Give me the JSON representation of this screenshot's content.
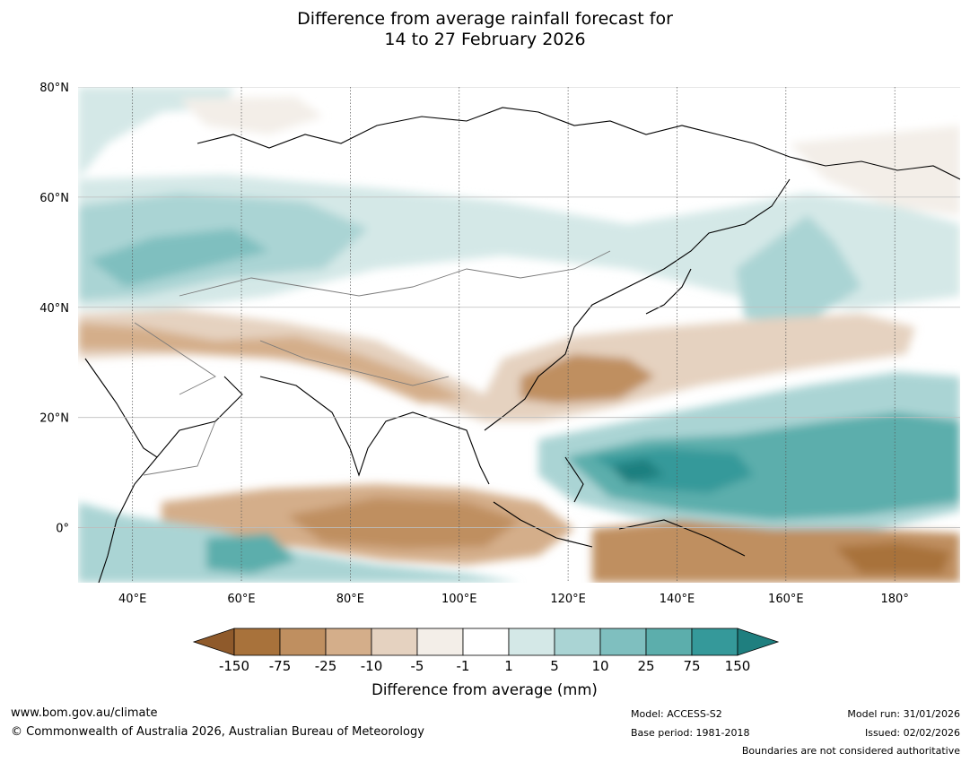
{
  "title": {
    "line1": "Difference from average rainfall forecast for",
    "line2": "14 to 27 February 2026"
  },
  "map": {
    "lat_labels": [
      "80°N",
      "60°N",
      "40°N",
      "20°N",
      "0°"
    ],
    "lon_labels": [
      "40°E",
      "60°E",
      "80°E",
      "100°E",
      "120°E",
      "140°E",
      "160°E",
      "180°"
    ],
    "lat_values": [
      80,
      60,
      40,
      20,
      0
    ],
    "lon_values": [
      40,
      60,
      80,
      100,
      120,
      140,
      160,
      180
    ],
    "extent": {
      "lon_min": 30,
      "lon_max": 192,
      "lat_min": -10,
      "lat_max": 80
    }
  },
  "colorbar": {
    "title": "Difference from average (mm)",
    "labels": [
      "-150",
      "-75",
      "-25",
      "-10",
      "-5",
      "-1",
      "1",
      "5",
      "10",
      "25",
      "75",
      "150"
    ],
    "colors": [
      "#a8723b",
      "#bf8f60",
      "#d4ae8a",
      "#e5d2c0",
      "#f3eee8",
      "#ffffff",
      "#d4e8e7",
      "#aad4d4",
      "#7fbfbf",
      "#5caeac",
      "#35999a"
    ],
    "under_color": "#8f5a2b",
    "over_color": "#1f7f7f"
  },
  "footer": {
    "website": "www.bom.gov.au/climate",
    "copyright": "© Commonwealth of Australia 2026, Australian Bureau of Meteorology",
    "model": "Model: ACCESS-S2",
    "base_period": "Base period: 1981-2018",
    "model_run": "Model run: 31/01/2026",
    "issued": "Issued: 02/02/2026",
    "disclaimer": "Boundaries are not considered authoritative"
  }
}
